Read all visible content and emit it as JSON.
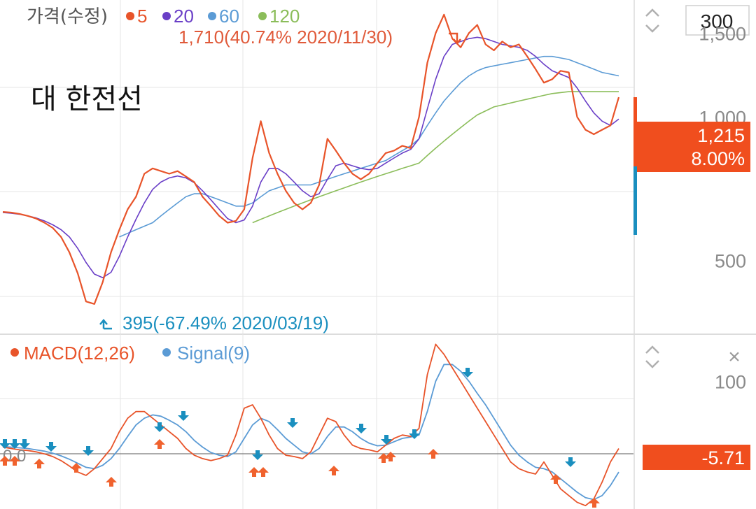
{
  "colors": {
    "ma5": "#e8542a",
    "ma20": "#6a3fc7",
    "ma60": "#5b9bd5",
    "ma120": "#8bbd5a",
    "macd": "#e8542a",
    "signal": "#5b9bd5",
    "price_badge_bg": "#f04e1e",
    "macd_badge_bg": "#f04e1e",
    "up_arrow": "#f0622e",
    "down_arrow": "#1a8fbf",
    "grid": "#e6e6e6",
    "axis_text": "#8a8a8a"
  },
  "price_panel": {
    "legend_title": "가격(수정)",
    "legend_items": [
      {
        "label": "5",
        "color": "#e8542a"
      },
      {
        "label": "20",
        "color": "#6a3fc7"
      },
      {
        "label": "60",
        "color": "#5b9bd5"
      },
      {
        "label": "120",
        "color": "#8bbd5a"
      }
    ],
    "stock_name": "대 한전선",
    "period_value": "300",
    "high_annotation": "1,710(40.74% 2020/11/30)",
    "low_annotation": "395(-67.49% 2020/03/19)",
    "current_price": "1,215",
    "current_change": "8.00%"
  },
  "macd_panel": {
    "legend_macd": "MACD(12,26)",
    "legend_signal": "Signal(9)",
    "zero_label": "0.0",
    "current_value": "-5.71",
    "close_icon": "×"
  },
  "chart_data": [
    {
      "type": "line",
      "title": "대 한전선",
      "x_range": [
        "2019/12",
        "2021/05"
      ],
      "ylim": [
        350,
        1760
      ],
      "y_ticks": [
        500,
        1000,
        1500
      ],
      "y_tick_labels": [
        "500",
        "1,000",
        "1,500"
      ],
      "grid": true,
      "legend_placement": "top-left",
      "x": [
        0,
        12,
        24,
        36,
        48,
        60,
        72,
        84,
        96,
        108,
        120,
        132,
        144,
        156,
        168,
        180,
        192,
        204,
        216,
        228,
        240,
        252,
        264,
        276,
        288,
        300,
        312,
        324,
        336,
        348,
        360,
        372,
        384,
        396,
        408,
        420,
        432,
        444,
        456,
        468,
        480,
        492,
        504,
        516,
        528,
        540,
        552,
        564,
        576,
        588,
        600,
        612,
        624,
        636,
        648,
        660,
        672,
        684,
        696,
        708,
        720,
        732,
        744,
        756,
        768,
        780,
        792,
        804,
        816,
        828,
        840,
        852,
        864,
        876,
        888
      ],
      "series": [
        {
          "name": "5",
          "values": [
            632,
            630,
            626,
            620,
            612,
            600,
            585,
            560,
            520,
            470,
            410,
            405,
            450,
            520,
            580,
            640,
            680,
            760,
            780,
            770,
            760,
            770,
            750,
            730,
            680,
            650,
            620,
            600,
            605,
            640,
            820,
            980,
            840,
            760,
            700,
            660,
            640,
            660,
            720,
            900,
            850,
            800,
            760,
            740,
            760,
            800,
            840,
            850,
            870,
            860,
            1000,
            1300,
            1500,
            1640,
            1460,
            1400,
            1500,
            1560,
            1420,
            1380,
            1440,
            1400,
            1420,
            1340,
            1260,
            1180,
            1200,
            1250,
            1240,
            1000,
            940,
            920,
            940,
            960,
            1100
          ]
        },
        {
          "name": "20",
          "values": [
            630,
            628,
            625,
            620,
            614,
            605,
            594,
            580,
            560,
            530,
            495,
            468,
            460,
            472,
            510,
            560,
            610,
            660,
            705,
            730,
            745,
            752,
            745,
            728,
            700,
            670,
            640,
            612,
            600,
            608,
            650,
            730,
            780,
            780,
            760,
            730,
            700,
            680,
            690,
            740,
            790,
            800,
            790,
            780,
            775,
            780,
            800,
            820,
            840,
            855,
            900,
            1040,
            1200,
            1340,
            1420,
            1440,
            1460,
            1470,
            1460,
            1440,
            1420,
            1410,
            1400,
            1380,
            1340,
            1290,
            1250,
            1230,
            1210,
            1150,
            1080,
            1020,
            980,
            960,
            990
          ]
        },
        {
          "name": "60",
          "values": [
            null,
            null,
            null,
            null,
            null,
            null,
            null,
            null,
            null,
            null,
            null,
            null,
            null,
            null,
            560,
            570,
            580,
            590,
            600,
            620,
            640,
            660,
            680,
            690,
            690,
            680,
            670,
            660,
            650,
            650,
            660,
            680,
            700,
            710,
            720,
            720,
            720,
            720,
            730,
            740,
            750,
            760,
            770,
            780,
            790,
            800,
            810,
            830,
            850,
            870,
            900,
            960,
            1020,
            1080,
            1130,
            1180,
            1220,
            1250,
            1270,
            1280,
            1290,
            1300,
            1310,
            1320,
            1330,
            1340,
            1340,
            1330,
            1320,
            1300,
            1280,
            1260,
            1240,
            1230,
            1220
          ]
        },
        {
          "name": "120",
          "values": [
            null,
            null,
            null,
            null,
            null,
            null,
            null,
            null,
            null,
            null,
            null,
            null,
            null,
            null,
            null,
            null,
            null,
            null,
            null,
            null,
            null,
            null,
            null,
            null,
            null,
            null,
            null,
            null,
            null,
            null,
            600,
            610,
            620,
            630,
            640,
            650,
            660,
            670,
            680,
            690,
            700,
            710,
            720,
            730,
            740,
            750,
            760,
            770,
            780,
            790,
            800,
            830,
            860,
            890,
            920,
            950,
            980,
            1010,
            1030,
            1050,
            1060,
            1070,
            1080,
            1090,
            1100,
            1110,
            1120,
            1125,
            1130,
            1130,
            1130,
            1130,
            1130,
            1130,
            1130
          ]
        }
      ]
    },
    {
      "type": "line",
      "title": "MACD(12,26)",
      "ylim": [
        -90,
        170
      ],
      "y_ticks": [
        0,
        100
      ],
      "y_tick_labels": [
        "0.0",
        "100"
      ],
      "grid": true,
      "legend_placement": "top-left",
      "x": [
        0,
        12,
        24,
        36,
        48,
        60,
        72,
        84,
        96,
        108,
        120,
        132,
        144,
        156,
        168,
        180,
        192,
        204,
        216,
        228,
        240,
        252,
        264,
        276,
        288,
        300,
        312,
        324,
        336,
        348,
        360,
        372,
        384,
        396,
        408,
        420,
        432,
        444,
        456,
        468,
        480,
        492,
        504,
        516,
        528,
        540,
        552,
        564,
        576,
        588,
        600,
        612,
        624,
        636,
        648,
        660,
        672,
        684,
        696,
        708,
        720,
        732,
        744,
        756,
        768,
        780,
        792,
        804,
        816,
        828,
        840,
        852,
        864,
        876,
        888
      ],
      "series": [
        {
          "name": "MACD(12,26)",
          "values": [
            2,
            0,
            -2,
            -3,
            -5,
            -8,
            -12,
            -18,
            -26,
            -35,
            -40,
            -30,
            -15,
            0,
            25,
            45,
            55,
            55,
            45,
            35,
            25,
            15,
            0,
            -10,
            -15,
            -18,
            -15,
            -10,
            20,
            60,
            65,
            45,
            20,
            0,
            -10,
            -12,
            -15,
            -5,
            20,
            45,
            40,
            20,
            5,
            0,
            -2,
            -5,
            5,
            15,
            20,
            18,
            30,
            110,
            155,
            140,
            120,
            100,
            80,
            60,
            40,
            20,
            0,
            -20,
            -30,
            -35,
            -38,
            -20,
            -40,
            -60,
            -70,
            -80,
            -85,
            -75,
            -50,
            -20,
            0
          ]
        },
        {
          "name": "Signal(9)",
          "values": [
            3,
            2,
            1,
            0,
            -2,
            -4,
            -7,
            -11,
            -16,
            -22,
            -28,
            -30,
            -25,
            -15,
            0,
            18,
            35,
            45,
            50,
            48,
            42,
            35,
            25,
            12,
            2,
            -6,
            -10,
            -12,
            -5,
            15,
            35,
            45,
            40,
            28,
            15,
            5,
            -5,
            -8,
            0,
            18,
            32,
            32,
            25,
            15,
            8,
            4,
            5,
            10,
            15,
            17,
            20,
            55,
            100,
            125,
            125,
            115,
            100,
            82,
            65,
            45,
            25,
            5,
            -10,
            -20,
            -28,
            -30,
            -35,
            -45,
            -55,
            -65,
            -73,
            -76,
            -70,
            -55,
            -35
          ]
        }
      ]
    }
  ]
}
